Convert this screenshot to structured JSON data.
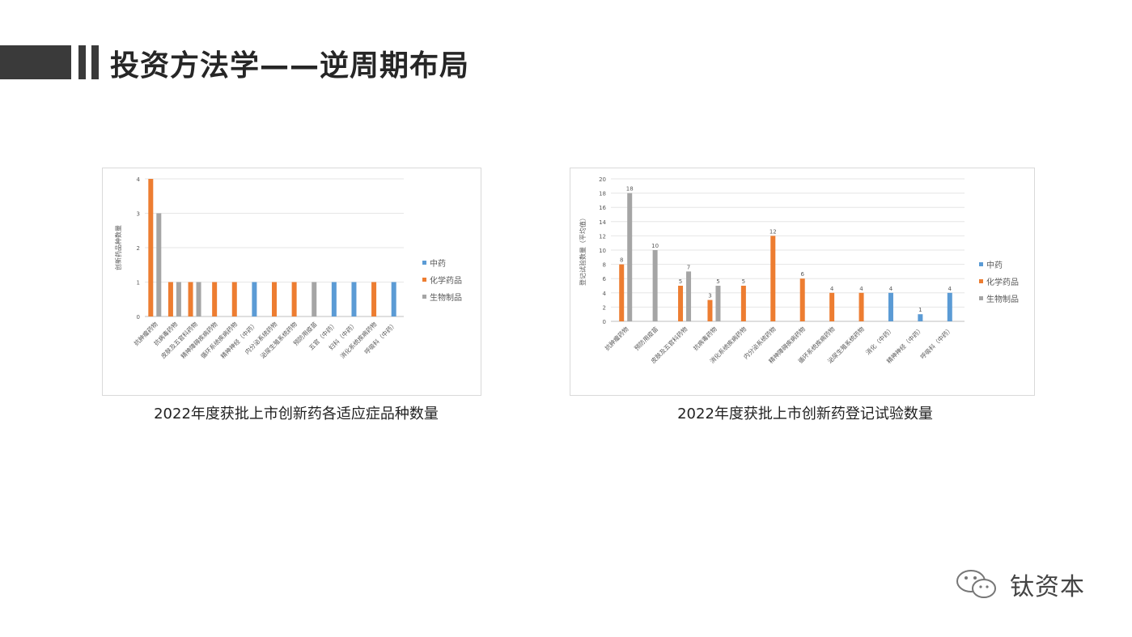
{
  "page": {
    "title": "投资方法学——逆周期布局",
    "watermark": "钛资本"
  },
  "colors": {
    "中药": "#5b9bd5",
    "化学药品": "#ed7d31",
    "生物制品": "#a5a5a5"
  },
  "chart_data": [
    {
      "type": "bar",
      "caption": "2022年度获批上市创新药各适应症品种数量",
      "ylabel": "创新药品种数量",
      "ylim": [
        0,
        4
      ],
      "yticks": [
        0,
        1,
        2,
        3,
        4
      ],
      "grid": true,
      "legend_position": "right",
      "categories": [
        "抗肿瘤药物",
        "抗病毒药物",
        "皮肤及五官科药物",
        "精神障碍疾病药物",
        "循环系统疾病药物",
        "精神神经（中药）",
        "内分泌系统药物",
        "泌尿生殖系统药物",
        "预防用疫苗",
        "五官（中药）",
        "妇科（中药）",
        "消化系统疾病药物",
        "呼吸科（中药）"
      ],
      "series": [
        {
          "name": "中药",
          "values": [
            0,
            0,
            0,
            0,
            0,
            1,
            0,
            0,
            0,
            1,
            1,
            0,
            1
          ]
        },
        {
          "name": "化学药品",
          "values": [
            4,
            1,
            1,
            1,
            1,
            0,
            1,
            1,
            0,
            0,
            0,
            1,
            0
          ]
        },
        {
          "name": "生物制品",
          "values": [
            3,
            1,
            1,
            0,
            0,
            0,
            0,
            0,
            1,
            0,
            0,
            0,
            0
          ]
        }
      ]
    },
    {
      "type": "bar",
      "caption": "2022年度获批上市创新药登记试验数量",
      "ylabel": "登记试验数量（平均值）",
      "ylim": [
        0,
        20
      ],
      "yticks": [
        0,
        2,
        4,
        6,
        8,
        10,
        12,
        14,
        16,
        18,
        20
      ],
      "grid": true,
      "legend_position": "right",
      "show_data_labels": true,
      "categories": [
        "抗肿瘤药物",
        "预防用疫苗",
        "皮肤及五官科药物",
        "抗病毒药物",
        "消化系统疾病药物",
        "内分泌系统药物",
        "精神障碍疾病药物",
        "循环系统疾病药物",
        "泌尿生殖系统药物",
        "消化（中药）",
        "精神神经（中药）",
        "呼吸科（中药）"
      ],
      "series": [
        {
          "name": "中药",
          "values": [
            0,
            0,
            0,
            0,
            0,
            0,
            0,
            0,
            0,
            4,
            1,
            4
          ]
        },
        {
          "name": "化学药品",
          "values": [
            8,
            0,
            5,
            3,
            5,
            12,
            6,
            4,
            4,
            0,
            0,
            0
          ]
        },
        {
          "name": "生物制品",
          "values": [
            18,
            10,
            7,
            5,
            0,
            0,
            0,
            0,
            0,
            0,
            0,
            0
          ]
        }
      ]
    }
  ]
}
